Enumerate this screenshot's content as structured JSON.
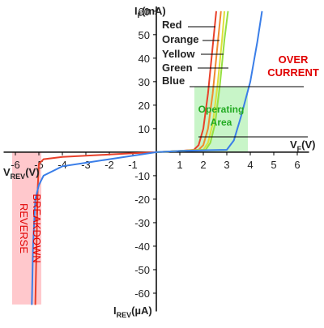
{
  "chart_data": {
    "type": "line",
    "x_label": [
      "V",
      "F",
      "(V)"
    ],
    "x_neg_label": [
      "V",
      "REV",
      "(V)"
    ],
    "y_label": [
      "I",
      "F",
      "(mA)"
    ],
    "y_neg_label": [
      "I",
      "REV",
      "(µA)"
    ],
    "xlim": [
      -6.5,
      6.5
    ],
    "ylim": [
      -65,
      62
    ],
    "xticks": [
      -6,
      -5,
      -4,
      -3,
      -2,
      -1,
      1,
      2,
      3,
      4,
      5,
      6
    ],
    "yticks": [
      -60,
      -50,
      -40,
      -30,
      -20,
      -10,
      10,
      20,
      30,
      40,
      50,
      60
    ],
    "series": [
      {
        "name": "Red",
        "color": "#e8402a",
        "x": [
          -5.15,
          -5.1,
          -5.05,
          -5.0,
          -4.8,
          -4,
          -3,
          -2,
          -1,
          0,
          1,
          1.6,
          1.8,
          2.0,
          2.2,
          2.4,
          2.55
        ],
        "values": [
          -65,
          -40,
          -15,
          -5,
          -3,
          -2,
          -1.5,
          -1,
          -0.5,
          0,
          0.5,
          1,
          3,
          10,
          25,
          45,
          60
        ]
      },
      {
        "name": "Orange",
        "color": "#f08a30",
        "x": [
          0,
          1,
          1.8,
          2.0,
          2.2,
          2.4,
          2.6,
          2.75
        ],
        "values": [
          0,
          0.5,
          1,
          3,
          10,
          25,
          45,
          60
        ]
      },
      {
        "name": "Yellow",
        "color": "#dde03a",
        "x": [
          0,
          1,
          2.0,
          2.2,
          2.4,
          2.6,
          2.8,
          2.9
        ],
        "values": [
          0,
          0.5,
          1,
          4,
          12,
          28,
          48,
          60
        ]
      },
      {
        "name": "Green",
        "color": "#95e040",
        "x": [
          0,
          1,
          2.1,
          2.3,
          2.5,
          2.7,
          2.9,
          3.05
        ],
        "values": [
          0,
          0.5,
          1,
          4,
          12,
          28,
          48,
          60
        ]
      },
      {
        "name": "Blue",
        "color": "#3a7ee8",
        "x": [
          -5.3,
          -5.25,
          -5.15,
          -5.0,
          -4.8,
          -4,
          -3,
          -2,
          -1,
          0,
          1,
          2,
          3,
          3.3,
          3.6,
          4.0,
          4.3,
          4.5
        ],
        "values": [
          -65,
          -40,
          -20,
          -14,
          -10,
          -6,
          -4.5,
          -3,
          -1.5,
          0,
          0.5,
          0.8,
          1,
          5,
          15,
          30,
          47,
          60
        ]
      }
    ],
    "annotations": {
      "over_current": [
        "OVER",
        "CURRENT"
      ],
      "operating_area": [
        "Operating",
        "Area"
      ],
      "reverse_breakdown": [
        "REVERSE",
        "BREAKDOWN"
      ]
    }
  }
}
